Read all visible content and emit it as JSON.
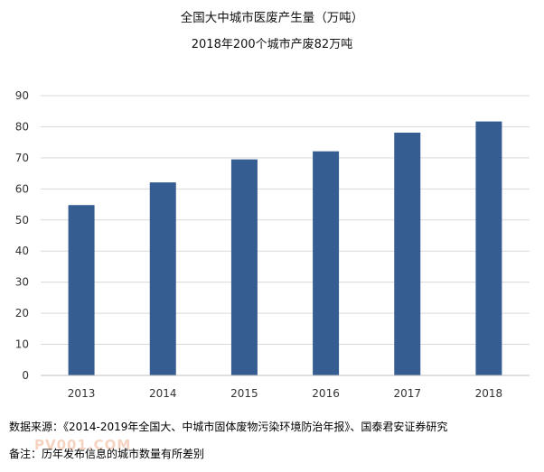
{
  "chart_data": {
    "type": "bar",
    "title": "全国大中城市医废产生量（万吨）",
    "subtitle": "2018年200个城市产废82万吨",
    "categories": [
      "2013",
      "2014",
      "2015",
      "2016",
      "2017",
      "2018"
    ],
    "values": [
      54.8,
      62.1,
      69.5,
      72.1,
      78.1,
      81.7
    ],
    "ylim": [
      0,
      90
    ],
    "yticks": [
      0,
      10,
      20,
      30,
      40,
      50,
      60,
      70,
      80,
      90
    ],
    "grid": true,
    "bar_color": "#355D91",
    "grid_color": "#D9D9D9"
  },
  "footer": {
    "source": "数据来源：《2014-2019年全国大、中城市固体废物污染环境防治年报》、国泰君安证券研究",
    "note": "备注：历年发布信息的城市数量有所差别",
    "watermark": "PV001.COM"
  }
}
